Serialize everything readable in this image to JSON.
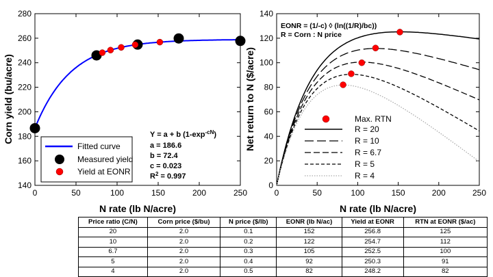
{
  "chart_data": [
    {
      "type": "line",
      "xlabel": "N rate (lb N/acre)",
      "ylabel": "Corn yield (bu/acre)",
      "xlim": [
        0,
        250
      ],
      "ylim": [
        140,
        280
      ],
      "xticks": [
        0,
        50,
        100,
        150,
        200,
        250
      ],
      "yticks": [
        140,
        160,
        180,
        200,
        220,
        240,
        260,
        280
      ],
      "model": {
        "a": 186.6,
        "b": 72.4,
        "c": 0.023
      },
      "equation": {
        "line1_pre": "Y = a + b (1-exp",
        "line1_sup": "-cN",
        "line1_post": ")",
        "line2": "a = 186.6",
        "line3": "b = 72.4",
        "line4": "c = 0.023",
        "line5_pre": "R",
        "line5_sup": "2",
        "line5_post": " = 0.997"
      },
      "series": [
        {
          "name": "Fitted curve",
          "kind": "curve",
          "color": "#0000ff"
        },
        {
          "name": "Measured yield",
          "kind": "points",
          "color": "#000000",
          "x": [
            0,
            75,
            125,
            175,
            250
          ],
          "y": [
            186.6,
            246.0,
            254.8,
            259.8,
            257.8
          ]
        },
        {
          "name": "Yield at EONR",
          "kind": "points",
          "color": "#ff0000",
          "x": [
            82,
            92,
            105,
            122,
            152
          ],
          "y": [
            248.2,
            250.3,
            252.5,
            254.7,
            256.8
          ]
        }
      ],
      "legend": [
        "Fitted curve",
        "Measured yield",
        "Yield at EONR"
      ]
    },
    {
      "type": "line",
      "xlabel": "N rate (lb N/acre)",
      "ylabel": "Net return to N ($/acre)",
      "xlim": [
        0,
        250
      ],
      "ylim": [
        0,
        140
      ],
      "xticks": [
        0,
        50,
        100,
        150,
        200,
        250
      ],
      "yticks": [
        0,
        20,
        40,
        60,
        80,
        100,
        120,
        140
      ],
      "annotation_line1": "EONR = (1/-c) ◊ (ln((1/R)/bc))",
      "annotation_line2": "R = Corn : N price",
      "series": [
        {
          "name": "R = 20",
          "R": 20,
          "dash": "",
          "width": 1.5,
          "color": "#000000",
          "eonr": 152,
          "rtn": 125
        },
        {
          "name": "R = 10",
          "R": 10,
          "dash": "13,5",
          "width": 1.3,
          "color": "#000000",
          "eonr": 122,
          "rtn": 112
        },
        {
          "name": "R = 6.7",
          "R": 6.7,
          "dash": "9,4",
          "width": 1.3,
          "color": "#000000",
          "eonr": 105,
          "rtn": 100
        },
        {
          "name": "R = 5",
          "R": 5,
          "dash": "5,3",
          "width": 1.3,
          "color": "#000000",
          "eonr": 92,
          "rtn": 91
        },
        {
          "name": "R = 4",
          "R": 4,
          "dash": "1.5,2",
          "width": 1.3,
          "color": "#aaaaaa",
          "eonr": 82,
          "rtn": 82
        }
      ],
      "max_rtn_label": "Max. RTN"
    }
  ],
  "table": {
    "headers": [
      "Price ratio (C/N)",
      "Corn price ($/bu)",
      "N price ($/lb)",
      "EONR (lb N/ac)",
      "Yield at EONR",
      "RTN at EONR ($/ac)"
    ],
    "rows": [
      [
        "20",
        "2.0",
        "0.1",
        "152",
        "256.8",
        "125"
      ],
      [
        "10",
        "2.0",
        "0.2",
        "122",
        "254.7",
        "112"
      ],
      [
        "6.7",
        "2.0",
        "0.3",
        "105",
        "252.5",
        "100"
      ],
      [
        "5",
        "2.0",
        "0.4",
        "92",
        "250.3",
        "91"
      ],
      [
        "4",
        "2.0",
        "0.5",
        "82",
        "248.2",
        "82"
      ]
    ]
  }
}
